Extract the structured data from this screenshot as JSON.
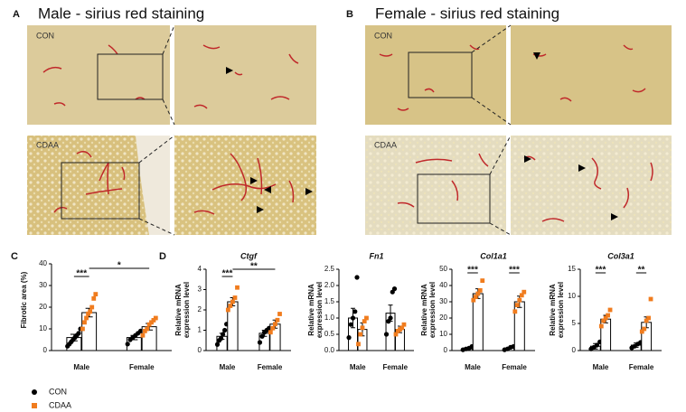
{
  "panels": {
    "A": {
      "label": "A",
      "title": "Male - sirius red staining",
      "rows": [
        "CON",
        "CDAA"
      ]
    },
    "B": {
      "label": "B",
      "title": "Female - sirius red staining",
      "rows": [
        "CON",
        "CDAA"
      ]
    },
    "C": {
      "label": "C"
    },
    "D": {
      "label": "D"
    }
  },
  "chart_data": [
    {
      "type": "bar",
      "ylabel": [
        "Fibrotic area (%)"
      ],
      "categories": [
        "Male",
        "Female"
      ],
      "ylim": [
        0,
        40
      ],
      "yticks": [
        0,
        10,
        20,
        30,
        40
      ],
      "annotations": [
        "***",
        "*"
      ],
      "series": [
        {
          "name": "CON",
          "color": "#000000",
          "values": [
            6,
            6
          ],
          "errors": [
            1.5,
            1
          ],
          "points": [
            [
              2,
              3,
              4,
              5,
              6,
              7,
              8,
              10
            ],
            [
              3,
              5,
              6,
              7,
              8,
              9
            ]
          ]
        },
        {
          "name": "CDAA",
          "color": "#f07c1e",
          "values": [
            17.5,
            11
          ],
          "errors": [
            2,
            1.5
          ],
          "points": [
            [
              10,
              13,
              15,
              17,
              18,
              20,
              24,
              26
            ],
            [
              7,
              9,
              10,
              12,
              13,
              14,
              15
            ]
          ]
        }
      ]
    },
    {
      "type": "bar",
      "title": "Ctgf",
      "ylabel": [
        "Relative mRNA",
        "expression level"
      ],
      "categories": [
        "Male",
        "Female"
      ],
      "ylim": [
        0,
        4
      ],
      "yticks": [
        0,
        1,
        2,
        3,
        4
      ],
      "annotations": [
        "***",
        "**"
      ],
      "series": [
        {
          "name": "CON",
          "color": "#000000",
          "values": [
            0.7,
            0.85
          ],
          "errors": [
            0.15,
            0.15
          ],
          "points": [
            [
              0.3,
              0.5,
              0.6,
              0.8,
              1.0,
              1.3
            ],
            [
              0.4,
              0.7,
              0.9,
              1.0,
              1.1
            ]
          ]
        },
        {
          "name": "CDAA",
          "color": "#f07c1e",
          "values": [
            2.4,
            1.3
          ],
          "errors": [
            0.2,
            0.2
          ],
          "points": [
            [
              2.0,
              2.2,
              2.4,
              2.6,
              3.1
            ],
            [
              0.9,
              1.1,
              1.3,
              1.5,
              1.8
            ]
          ]
        }
      ]
    },
    {
      "type": "bar",
      "title": "Fn1",
      "ylabel": [
        "Relative mRNA",
        "expression level"
      ],
      "categories": [
        "Male",
        "Female"
      ],
      "ylim": [
        0,
        2.5
      ],
      "yticks": [
        {
          "value": 0,
          "label": "0.0"
        },
        0.5,
        {
          "value": 1,
          "label": "1.0"
        },
        1.5,
        {
          "value": 2,
          "label": "2.0"
        },
        2.5
      ],
      "annotations": [],
      "series": [
        {
          "name": "CON",
          "color": "#000000",
          "values": [
            1.0,
            1.15
          ],
          "errors": [
            0.3,
            0.25
          ],
          "points": [
            [
              0.4,
              0.8,
              1.0,
              1.2,
              2.25
            ],
            [
              0.5,
              0.9,
              1.0,
              1.8,
              1.9
            ]
          ]
        },
        {
          "name": "CDAA",
          "color": "#f07c1e",
          "values": [
            0.65,
            0.65
          ],
          "errors": [
            0.2,
            0.1
          ],
          "points": [
            [
              0.2,
              0.5,
              0.7,
              0.9,
              1.0
            ],
            [
              0.5,
              0.6,
              0.65,
              0.7,
              0.8
            ]
          ]
        }
      ]
    },
    {
      "type": "bar",
      "title": "Col1a1",
      "ylabel": [
        "Relative mRNA",
        "expression level"
      ],
      "categories": [
        "Male",
        "Female"
      ],
      "ylim": [
        0,
        50
      ],
      "yticks": [
        0,
        10,
        20,
        30,
        40,
        50
      ],
      "annotations": [
        "***",
        "***"
      ],
      "series": [
        {
          "name": "CON",
          "color": "#000000",
          "values": [
            1,
            1.5
          ],
          "errors": [
            0.5,
            0.5
          ],
          "points": [
            [
              0.5,
              1,
              1.5,
              2.5
            ],
            [
              0.5,
              1,
              2,
              2.5
            ]
          ]
        },
        {
          "name": "CDAA",
          "color": "#f07c1e",
          "values": [
            35,
            30
          ],
          "errors": [
            3,
            3.5
          ],
          "points": [
            [
              31,
              33,
              35,
              37,
              43
            ],
            [
              24,
              28,
              31,
              34,
              36
            ]
          ]
        }
      ]
    },
    {
      "type": "bar",
      "title": "Col3a1",
      "ylabel": [
        "Relative mRNA",
        "expression level"
      ],
      "categories": [
        "Male",
        "Female"
      ],
      "ylim": [
        0,
        15
      ],
      "yticks": [
        0,
        5,
        10,
        15
      ],
      "annotations": [
        "***",
        "**"
      ],
      "series": [
        {
          "name": "CON",
          "color": "#000000",
          "values": [
            0.8,
            1
          ],
          "errors": [
            0.5,
            0.4
          ],
          "points": [
            [
              0.3,
              0.6,
              1,
              1.6
            ],
            [
              0.5,
              0.8,
              1.2,
              1.5
            ]
          ]
        },
        {
          "name": "CDAA",
          "color": "#f07c1e",
          "values": [
            5.8,
            5.2
          ],
          "errors": [
            0.7,
            1
          ],
          "points": [
            [
              4.5,
              5.5,
              6,
              6.5,
              7.5
            ],
            [
              3.5,
              4,
              5.5,
              6,
              9.5
            ]
          ]
        }
      ]
    }
  ]
}
